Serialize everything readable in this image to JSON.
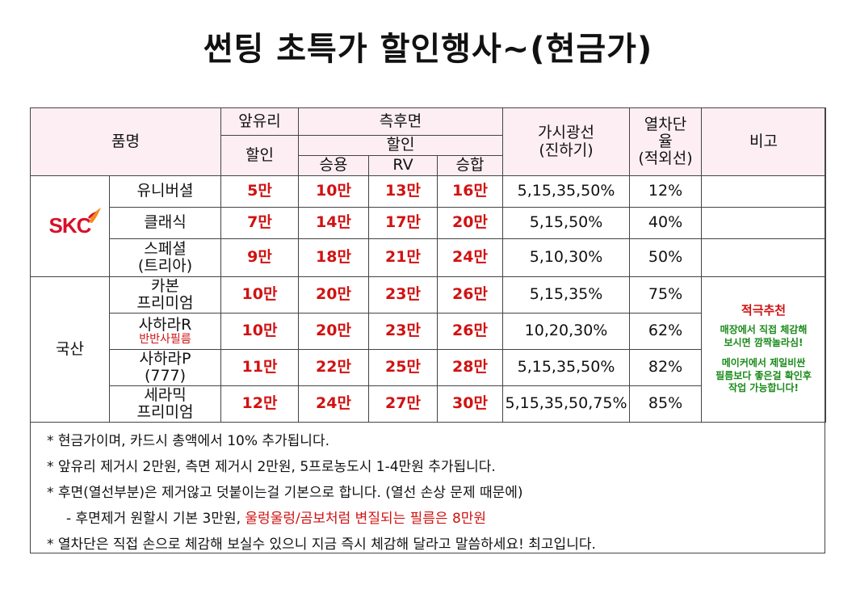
{
  "title": "썬팅 초특가 할인행사~(현금가)",
  "header": {
    "name": "품명",
    "front": "앞유리",
    "front_sub": "할인",
    "side": "측후면",
    "side_sub": "할인",
    "sedan": "승용",
    "rv": "RV",
    "van": "승합",
    "vlt_line1": "가시광선",
    "vlt_line2": "(진하기)",
    "heat_line1": "열차단",
    "heat_line2": "율",
    "heat_line3": "(적외선)",
    "note": "비고"
  },
  "brands": {
    "skc_logo": "SKC",
    "domestic": "국산"
  },
  "rows": [
    {
      "name1": "유니버셜",
      "name2": "",
      "front": "5만",
      "sedan": "10만",
      "rv": "13만",
      "van": "16만",
      "vlt": "5,15,35,50%",
      "heat": "12%"
    },
    {
      "name1": "클래식",
      "name2": "",
      "front": "7만",
      "sedan": "14만",
      "rv": "17만",
      "van": "20만",
      "vlt": "5,15,50%",
      "heat": "40%"
    },
    {
      "name1": "스페셜",
      "name2": "(트리아)",
      "front": "9만",
      "sedan": "18만",
      "rv": "21만",
      "van": "24만",
      "vlt": "5,10,30%",
      "heat": "50%"
    },
    {
      "name1": "카본",
      "name2": "프리미엄",
      "front": "10만",
      "sedan": "20만",
      "rv": "23만",
      "van": "26만",
      "vlt": "5,15,35%",
      "heat": "75%"
    },
    {
      "name1": "사하라R",
      "name2": "반반사필름",
      "front": "10만",
      "sedan": "20만",
      "rv": "23만",
      "van": "26만",
      "vlt": "10,20,30%",
      "heat": "62%"
    },
    {
      "name1": "사하라P",
      "name2": "(777)",
      "front": "11만",
      "sedan": "22만",
      "rv": "25만",
      "van": "28만",
      "vlt": "5,15,35,50%",
      "heat": "82%"
    },
    {
      "name1": "세라믹",
      "name2": "프리미엄",
      "front": "12만",
      "sedan": "24만",
      "rv": "27만",
      "van": "30만",
      "vlt": "5,15,35,50,75%",
      "heat": "85%"
    }
  ],
  "recommend": {
    "title": "적극추천",
    "line1a": "매장에서 직접 체감해",
    "line1b": "보시면 깜짝놀라심!",
    "line2a": "메이커에서 제일비싼",
    "line2b": "필름보다 좋은걸 확인후",
    "line2c": "작업 가능합니다!"
  },
  "notes": {
    "n1": "*  현금가이며, 카드시 총액에서 10% 추가됩니다.",
    "n2": "*  앞유리 제거시 2만원, 측면 제거시 2만원, 5프로농도시 1-4만원 추가됩니다.",
    "n3": "*  후면(열선부분)은 제거않고 덧붙이는걸 기본으로 합니다. (열선 손상 문제 때문에)",
    "n4a": "- 후면제거 원할시 기본 3만원, ",
    "n4b": "울렁울렁/곰보처럼 변질되는 필름은 8만원",
    "n5": "*  열차단은 직접 손으로 체감해 보실수 있으니 지금 즉시 체감해 달라고 말씀하세요! 최고입니다."
  },
  "colors": {
    "header_bg": "#fdeef3",
    "price_red": "#d11212",
    "recommend_green": "#1a8a1a",
    "skc_red": "#d8102a",
    "skc_orange": "#f28c1b"
  }
}
